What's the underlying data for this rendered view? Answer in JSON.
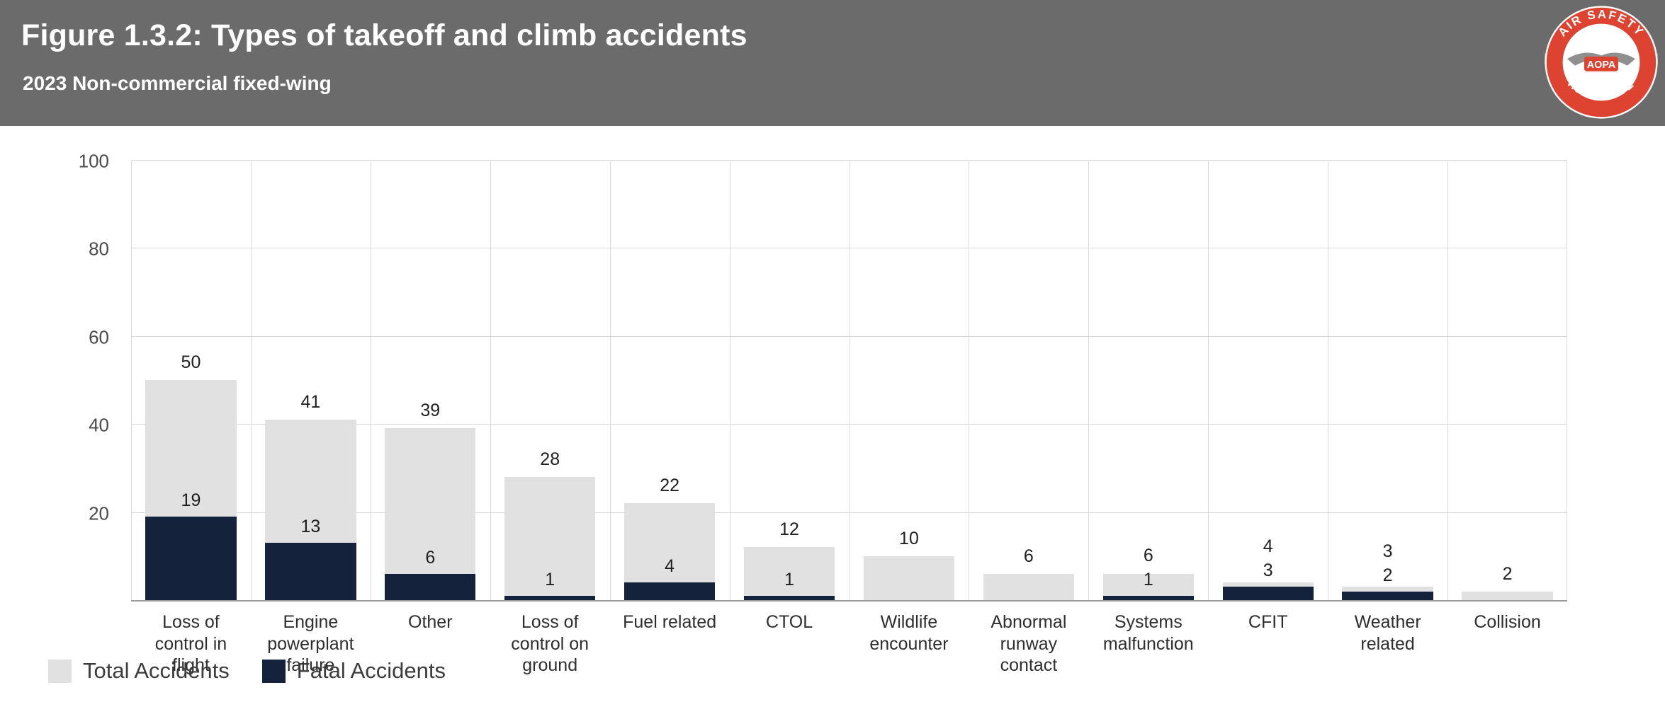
{
  "header": {
    "title": "Figure 1.3.2: Types of takeoff and climb accidents",
    "subtitle": "2023 Non-commercial fixed-wing",
    "logo": {
      "top_text": "AIR SAFETY",
      "bottom_text": "INSTITUTE",
      "center_text": "AOPA"
    }
  },
  "chart_data": {
    "type": "bar",
    "title": "Figure 1.3.2: Types of takeoff and climb accidents",
    "subtitle": "2023 Non-commercial fixed-wing",
    "categories": [
      "Loss of control in flight",
      "Engine powerplant failure",
      "Other",
      "Loss of control on ground",
      "Fuel related",
      "CTOL",
      "Wildlife encounter",
      "Abnormal runway contact",
      "Systems malfunction",
      "CFIT",
      "Weather related",
      "Collision"
    ],
    "series": [
      {
        "name": "Total Accidents",
        "color": "#e1e1e2",
        "values": [
          50,
          41,
          39,
          28,
          22,
          12,
          10,
          6,
          6,
          4,
          3,
          2
        ]
      },
      {
        "name": "Fatal Accidents",
        "color": "#15223b",
        "values": [
          19,
          13,
          6,
          1,
          4,
          1,
          0,
          0,
          1,
          3,
          2,
          0
        ]
      }
    ],
    "xlabel": "",
    "ylabel": "",
    "ylim": [
      0,
      100
    ],
    "yticks": [
      20,
      40,
      60,
      80,
      100
    ],
    "grid": true,
    "legend_position": "bottom-left"
  }
}
